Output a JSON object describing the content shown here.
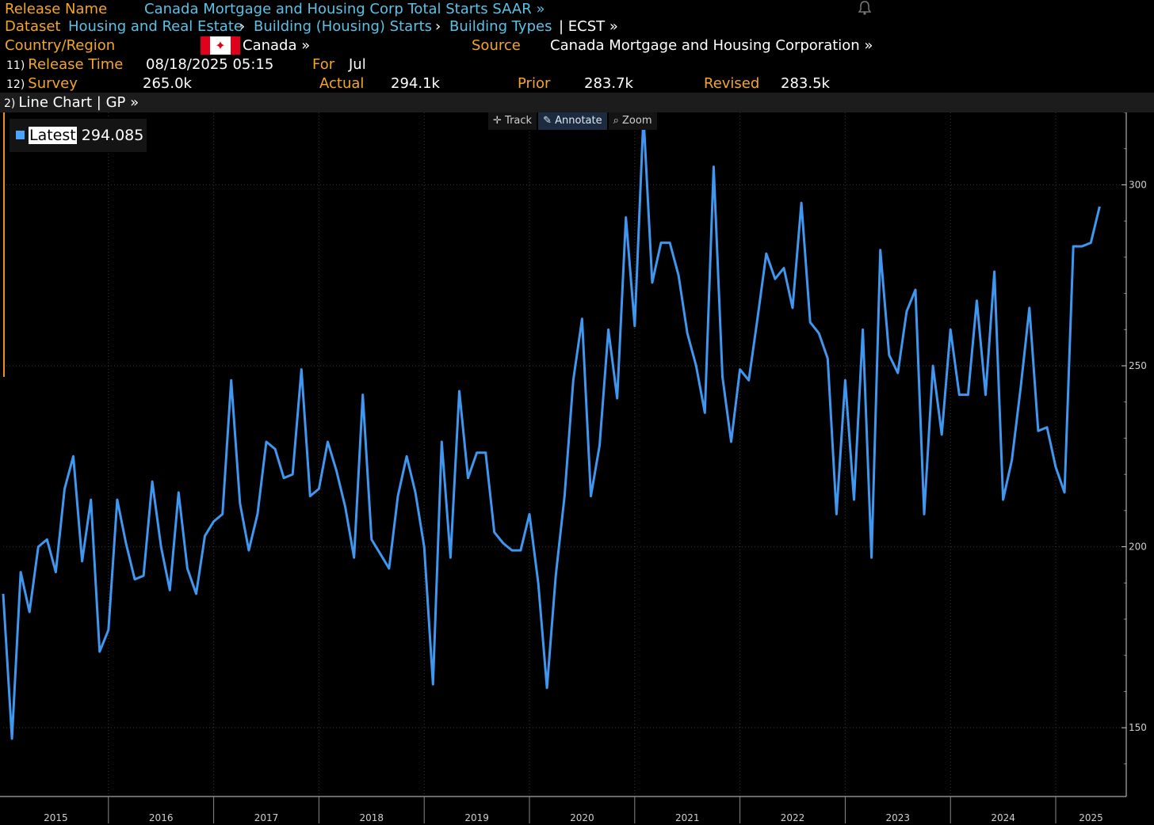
{
  "header": {
    "release_name_label": "Release Name",
    "release_name": "Canada Mortgage and Housing Corp Total Starts SAAR »",
    "dataset_label": "Dataset",
    "dataset_path": [
      "Housing and Real Estate",
      "Building (Housing) Starts",
      "Building Types"
    ],
    "dataset_suffix": "| ECST »",
    "country_label": "Country/Region",
    "country": "Canada »",
    "source_label": "Source",
    "source": "Canada Mortgage and Housing Corporation »",
    "release_time_num": "11)",
    "release_time_label": "Release Time",
    "release_time": "08/18/2025 05:15",
    "for_label": "For",
    "for_value": "Jul",
    "survey_num": "12)",
    "survey_label": "Survey",
    "survey": "265.0k",
    "actual_label": "Actual",
    "actual": "294.1k",
    "prior_label": "Prior",
    "prior": "283.7k",
    "revised_label": "Revised",
    "revised": "283.5k"
  },
  "chart_bar": {
    "num": "2)",
    "label": "Line Chart | GP »"
  },
  "tools": {
    "track": "Track",
    "annotate": "Annotate",
    "zoom": "Zoom"
  },
  "legend": {
    "label": "Latest",
    "value": "294.085"
  },
  "colors": {
    "orange": "#f5a623",
    "cyan": "#5bc2e7",
    "line": "#3f97f0"
  },
  "chart_data": {
    "type": "line",
    "title": "Canada Mortgage and Housing Corp Total Starts SAAR",
    "xlabel": "",
    "ylabel": "",
    "ylim": [
      131,
      320
    ],
    "x_range": [
      2015.0,
      2025.67
    ],
    "yticks": [
      150,
      200,
      250,
      300
    ],
    "xticks": [
      "2015",
      "2016",
      "2017",
      "2018",
      "2019",
      "2020",
      "2021",
      "2022",
      "2023",
      "2024",
      "2025"
    ],
    "series": [
      {
        "name": "Latest",
        "start": "2015-01",
        "values": [
          187,
          147,
          193,
          182,
          200,
          202,
          193,
          216,
          225,
          196,
          213,
          171,
          177,
          213,
          201,
          191,
          192,
          218,
          200,
          188,
          215,
          194,
          187,
          203,
          207,
          209,
          246,
          212,
          199,
          209,
          229,
          227,
          219,
          220,
          249,
          214,
          216,
          229,
          221,
          211,
          197,
          242,
          202,
          198,
          194,
          214,
          225,
          215,
          200,
          162,
          229,
          197,
          243,
          219,
          226,
          226,
          204,
          201,
          199,
          199,
          209,
          190,
          161,
          192,
          214,
          246,
          263,
          214,
          228,
          260,
          241,
          291,
          261,
          319,
          273,
          284,
          284,
          275,
          259,
          250,
          237,
          305,
          247,
          229,
          249,
          246,
          263,
          281,
          274,
          277,
          266,
          295,
          262,
          259,
          252,
          209,
          246,
          213,
          260,
          197,
          282,
          253,
          248,
          265,
          271,
          209,
          250,
          231,
          260,
          242,
          242,
          268,
          242,
          276,
          213,
          224,
          244,
          266,
          232,
          233,
          222,
          215,
          283,
          283,
          284,
          294
        ]
      }
    ]
  }
}
